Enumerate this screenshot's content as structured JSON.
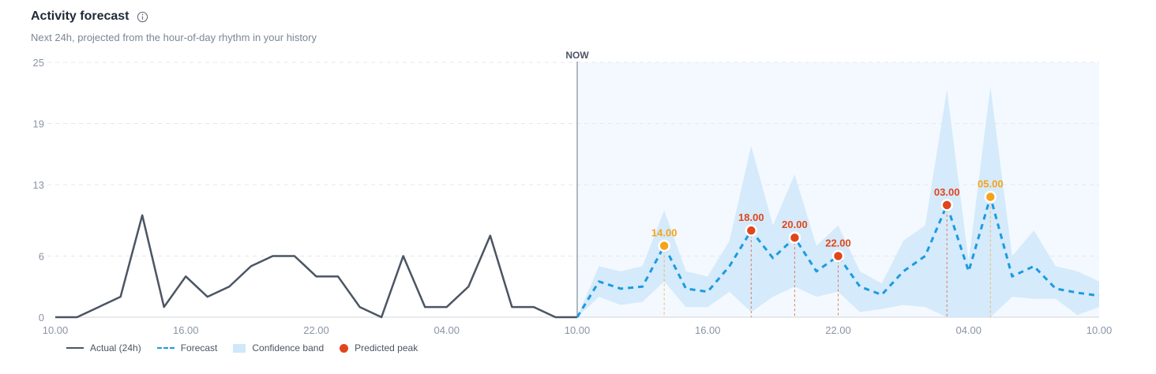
{
  "header": {
    "title": "Activity forecast",
    "subtitle": "Next 24h, projected from the hour-of-day rhythm in your history",
    "info_icon": "info-circle-icon"
  },
  "legend": {
    "actual": "Actual (24h)",
    "forecast": "Forecast",
    "band": "Confidence band",
    "peak": "Predicted peak"
  },
  "colors": {
    "actual": "#4b5563",
    "forecast": "#1b9be0",
    "band": "#cfe8fa",
    "forecast_region": "#f3f9fe",
    "peak_high": "#e0461b",
    "peak_mid": "#f5a31a",
    "now_line": "#9aa3ad",
    "grid": "#e5e7eb"
  },
  "chart_data": {
    "type": "line",
    "now_label": "NOW",
    "x_tick_labels": [
      "10.00",
      "16.00",
      "22.00",
      "04.00",
      "10.00",
      "16.00",
      "22.00",
      "04.00",
      "10.00"
    ],
    "y_ticks": [
      0,
      6,
      13,
      19,
      25
    ],
    "ylim": [
      0,
      25
    ],
    "hour_index_range": [
      0,
      48
    ],
    "now_index": 24,
    "series": [
      {
        "name": "Actual (24h)",
        "start_index": 0,
        "values": [
          0,
          0,
          1,
          2,
          10,
          1,
          4,
          2,
          3,
          5,
          6,
          6,
          4,
          4,
          1,
          0,
          6,
          1,
          1,
          3,
          8,
          1,
          1,
          0,
          0
        ]
      },
      {
        "name": "Forecast",
        "start_index": 24,
        "values": [
          0,
          3.5,
          2.8,
          3.0,
          7.0,
          2.8,
          2.5,
          5.0,
          8.5,
          5.8,
          7.8,
          4.5,
          6.0,
          3.0,
          2.2,
          4.5,
          6.0,
          11.0,
          4.5,
          11.8,
          4.0,
          5.0,
          2.8,
          2.4,
          2.1
        ]
      }
    ],
    "band": {
      "name": "Confidence band",
      "start_index": 24,
      "lower": [
        0,
        2.0,
        1.2,
        1.5,
        3.5,
        1.0,
        1.0,
        2.5,
        0.5,
        2.0,
        3.0,
        2.0,
        2.5,
        0.5,
        0.8,
        1.2,
        1.0,
        0,
        0,
        0,
        2.0,
        1.8,
        1.8,
        0.2,
        1.0
      ],
      "upper": [
        0,
        5.0,
        4.5,
        5.0,
        10.5,
        4.5,
        4.0,
        7.5,
        16.8,
        9.0,
        14.0,
        7.0,
        9.0,
        4.5,
        3.3,
        7.5,
        9.0,
        22.3,
        5.5,
        22.6,
        6.0,
        8.5,
        5.0,
        4.5,
        3.5
      ]
    },
    "peaks": [
      {
        "label": "14.00",
        "x_index": 28,
        "value": 7.0,
        "level": "mid"
      },
      {
        "label": "18.00",
        "x_index": 32,
        "value": 8.5,
        "level": "high"
      },
      {
        "label": "20.00",
        "x_index": 34,
        "value": 7.8,
        "level": "high"
      },
      {
        "label": "22.00",
        "x_index": 36,
        "value": 6.0,
        "level": "high"
      },
      {
        "label": "03.00",
        "x_index": 41,
        "value": 11.0,
        "level": "high"
      },
      {
        "label": "05.00",
        "x_index": 43,
        "value": 11.8,
        "level": "mid"
      }
    ],
    "grid": true,
    "legend_position": "bottom-left"
  }
}
